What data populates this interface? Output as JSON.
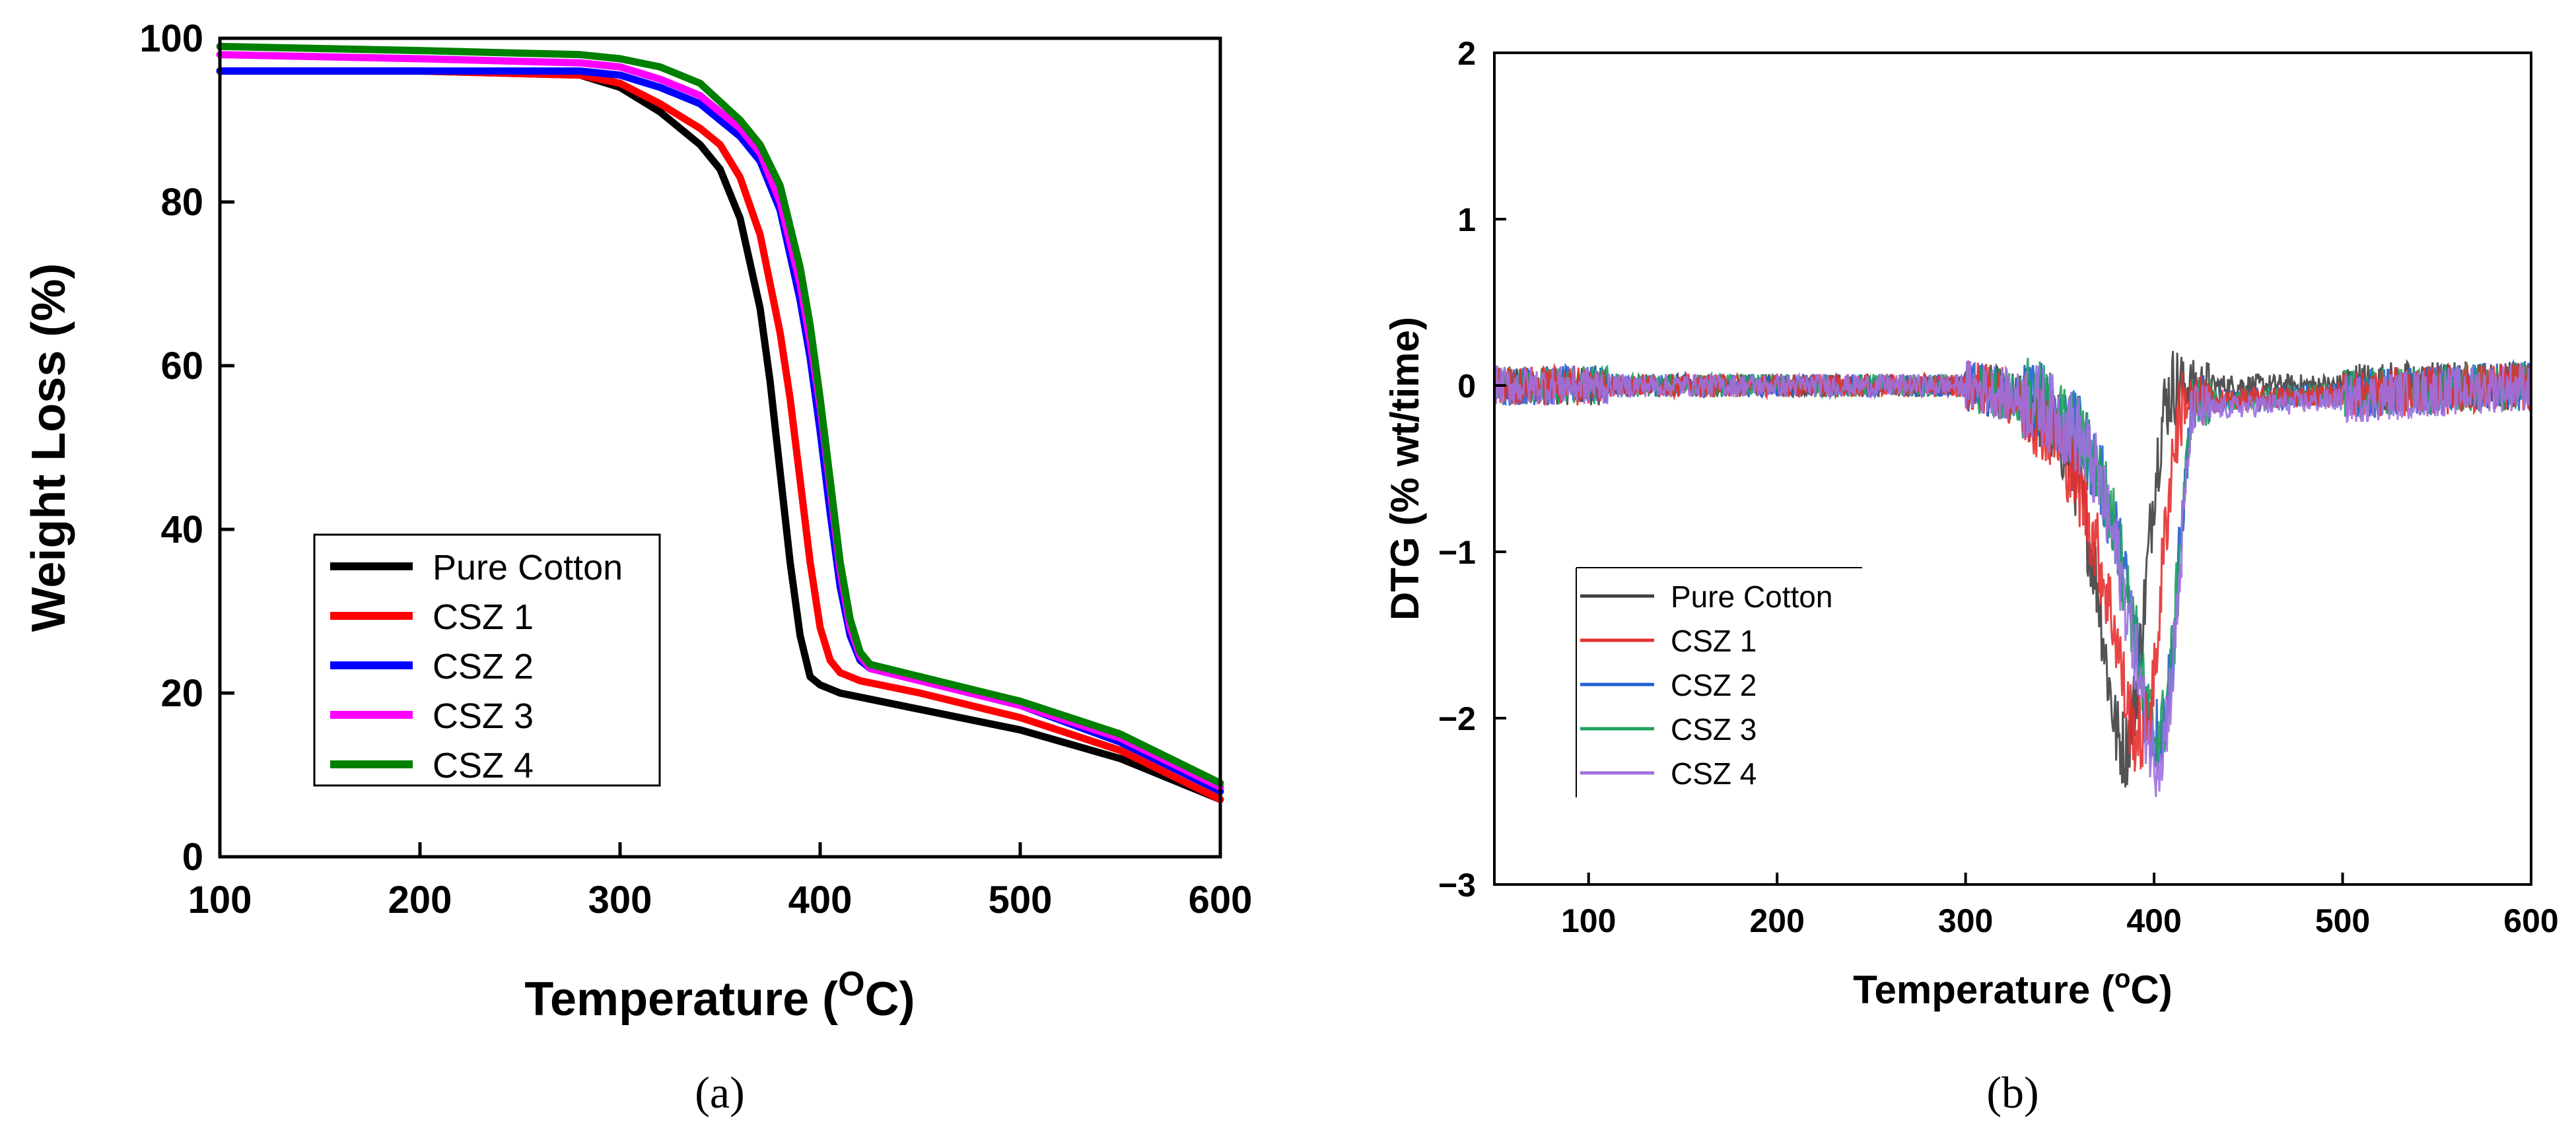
{
  "chart_data": [
    {
      "type": "line",
      "panel_label": "(a)",
      "title": "",
      "xlabel": "Temperature (",
      "xlabel_sup": "O",
      "xlabel_tail": "C)",
      "ylabel": "Weight Loss (%)",
      "xlim": [
        100,
        600
      ],
      "ylim": [
        0,
        100
      ],
      "xticks": [
        100,
        200,
        300,
        400,
        500,
        600
      ],
      "yticks": [
        0,
        20,
        40,
        60,
        80,
        100
      ],
      "grid": false,
      "legend_position": "bottom-left",
      "series": [
        {
          "name": "Pure Cotton",
          "color": "#000000",
          "x": [
            100,
            200,
            280,
            300,
            320,
            340,
            350,
            360,
            370,
            375,
            380,
            385,
            390,
            395,
            400,
            405,
            410,
            420,
            450,
            500,
            550,
            600
          ],
          "y": [
            96,
            96,
            95.5,
            94,
            91,
            87,
            84,
            78,
            67,
            58,
            47,
            36,
            27,
            22,
            21,
            20.5,
            20,
            19.5,
            18,
            15.5,
            12,
            7
          ]
        },
        {
          "name": "CSZ 1",
          "color": "#ff0000",
          "x": [
            100,
            200,
            280,
            300,
            320,
            340,
            350,
            360,
            370,
            380,
            385,
            390,
            395,
            400,
            405,
            410,
            415,
            420,
            450,
            500,
            550,
            600
          ],
          "y": [
            96,
            96,
            95.5,
            94.5,
            92,
            89,
            87,
            83,
            76,
            64,
            56,
            46,
            36,
            28,
            24,
            22.5,
            22,
            21.5,
            20,
            17,
            13,
            7
          ]
        },
        {
          "name": "CSZ 2",
          "color": "#0000ff",
          "x": [
            100,
            200,
            280,
            300,
            320,
            340,
            360,
            370,
            380,
            390,
            395,
            400,
            405,
            410,
            415,
            420,
            425,
            450,
            500,
            550,
            600
          ],
          "y": [
            96,
            96,
            96,
            95.5,
            94,
            92,
            88,
            85,
            79,
            68,
            61,
            52,
            42,
            33,
            27,
            24,
            23,
            21.5,
            18.5,
            14,
            8
          ]
        },
        {
          "name": "CSZ 3",
          "color": "#ff00ff",
          "x": [
            100,
            200,
            280,
            300,
            320,
            340,
            360,
            370,
            380,
            390,
            395,
            400,
            405,
            410,
            415,
            420,
            425,
            450,
            500,
            550,
            600
          ],
          "y": [
            98,
            97.5,
            97,
            96.5,
            95,
            93,
            89,
            86,
            80,
            70,
            63,
            55,
            45,
            35,
            28,
            24.5,
            23,
            21.5,
            18.5,
            14.5,
            8.5
          ]
        },
        {
          "name": "CSZ 4",
          "color": "#008000",
          "x": [
            100,
            200,
            280,
            300,
            320,
            340,
            360,
            370,
            380,
            390,
            395,
            400,
            405,
            410,
            415,
            420,
            425,
            450,
            500,
            550,
            600
          ],
          "y": [
            99,
            98.5,
            98,
            97.5,
            96.5,
            94.5,
            90,
            87,
            82,
            72,
            65,
            56,
            46,
            36,
            29,
            25,
            23.5,
            22,
            19,
            15,
            9
          ]
        }
      ]
    },
    {
      "type": "line",
      "panel_label": "(b)",
      "title": "",
      "xlabel": "Temperature (",
      "xlabel_sup": "o",
      "xlabel_tail": "C)",
      "ylabel": "DTG (% wt/time)",
      "xlim": [
        50,
        600
      ],
      "ylim": [
        -3,
        2
      ],
      "xticks": [
        100,
        200,
        300,
        400,
        500,
        600
      ],
      "yticks": [
        -3,
        -2,
        -1,
        0,
        1,
        2
      ],
      "ytick_labels": [
        "−3",
        "−2",
        "−1",
        "0",
        "1",
        "2"
      ],
      "grid": false,
      "legend_position": "bottom-left",
      "noise_note": "baseline ~0 with noise amplitude ~0.1-0.3",
      "series": [
        {
          "name": "Pure Cotton",
          "color": "#404040",
          "x": [
            50,
            300,
            320,
            340,
            350,
            360,
            370,
            375,
            380,
            385,
            390,
            395,
            400,
            405,
            410,
            600
          ],
          "y": [
            0,
            0,
            -0.05,
            -0.15,
            -0.3,
            -0.6,
            -1.2,
            -1.7,
            -2.1,
            -2.2,
            -1.9,
            -1.3,
            -0.6,
            -0.15,
            0,
            0
          ]
        },
        {
          "name": "CSZ 1",
          "color": "#e53030",
          "x": [
            50,
            300,
            320,
            340,
            350,
            360,
            370,
            380,
            385,
            390,
            395,
            400,
            405,
            410,
            415,
            600
          ],
          "y": [
            0,
            0,
            -0.05,
            -0.2,
            -0.35,
            -0.6,
            -1.0,
            -1.5,
            -1.9,
            -2.1,
            -2.1,
            -1.8,
            -1.0,
            -0.4,
            -0.1,
            0
          ]
        },
        {
          "name": "CSZ 2",
          "color": "#2060d0",
          "x": [
            50,
            300,
            320,
            340,
            360,
            370,
            380,
            390,
            395,
            400,
            405,
            410,
            415,
            420,
            600
          ],
          "y": [
            0,
            0,
            -0.05,
            -0.1,
            -0.3,
            -0.5,
            -0.9,
            -1.5,
            -1.9,
            -2.1,
            -2.05,
            -1.6,
            -0.8,
            -0.1,
            0
          ]
        },
        {
          "name": "CSZ 3",
          "color": "#20a060",
          "x": [
            50,
            300,
            320,
            340,
            360,
            370,
            380,
            390,
            395,
            400,
            405,
            410,
            415,
            420,
            600
          ],
          "y": [
            0,
            0,
            -0.05,
            -0.1,
            -0.3,
            -0.5,
            -0.9,
            -1.5,
            -1.9,
            -2.1,
            -2.05,
            -1.6,
            -0.8,
            -0.1,
            0
          ]
        },
        {
          "name": "CSZ 4",
          "color": "#a070e0",
          "x": [
            50,
            300,
            320,
            340,
            360,
            370,
            380,
            390,
            395,
            400,
            405,
            410,
            415,
            420,
            600
          ],
          "y": [
            0,
            0,
            -0.05,
            -0.12,
            -0.3,
            -0.55,
            -1.0,
            -1.6,
            -2.0,
            -2.25,
            -2.15,
            -1.7,
            -0.9,
            -0.15,
            0
          ]
        }
      ]
    }
  ]
}
